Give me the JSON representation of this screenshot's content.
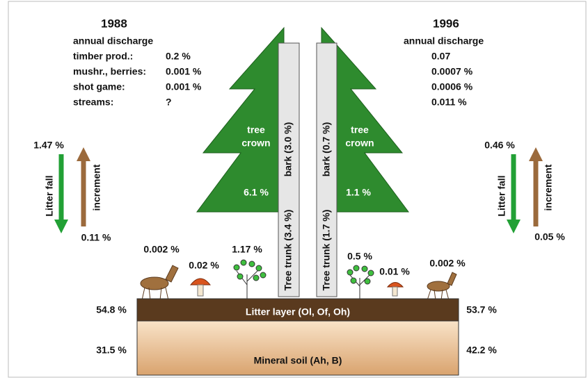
{
  "left": {
    "year": "1988",
    "discharge_title": "annual discharge",
    "rows": [
      [
        "timber prod.:",
        "0.2 %"
      ],
      [
        "mushr., berries:",
        "0.001 %"
      ],
      [
        "shot game:",
        "0.001 %"
      ],
      [
        "streams:",
        "?"
      ]
    ],
    "crown_label": [
      "tree",
      "crown"
    ],
    "crown_pct": "6.1 %",
    "bark": "bark (3.0 %)",
    "trunk": "Tree trunk (3.4 %)",
    "litter_fall_pct": "1.47 %",
    "litter_fall": "Litter fall",
    "increment": "increment",
    "increment_pct": "0.11 %",
    "deer": "0.002 %",
    "mushroom": "0.02 %",
    "shrub": "1.17 %",
    "litter_layer_pct": "54.8 %",
    "mineral_soil_pct": "31.5 %"
  },
  "right": {
    "year": "1996",
    "discharge_title": "annual discharge",
    "rows": [
      "0.07",
      "0.0007 %",
      "0.0006 %",
      "0.011 %"
    ],
    "crown_label": [
      "tree",
      "crown"
    ],
    "crown_pct": "1.1 %",
    "bark": "bark (0.7 %)",
    "trunk": "Tree trunk (1.7 %)",
    "litter_fall_pct": "0.46 %",
    "litter_fall": "Litter fall",
    "increment": "increment",
    "increment_pct": "0.05 %",
    "shrub": "0.5 %",
    "mushroom": "0.01 %",
    "deer": "0.002 %",
    "litter_layer_pct": "53.7 %",
    "mineral_soil_pct": "42.2 %"
  },
  "soil": {
    "litter_layer": "Litter layer (Ol, Of, Oh)",
    "mineral_soil": "Mineral soil (Ah, B)"
  }
}
